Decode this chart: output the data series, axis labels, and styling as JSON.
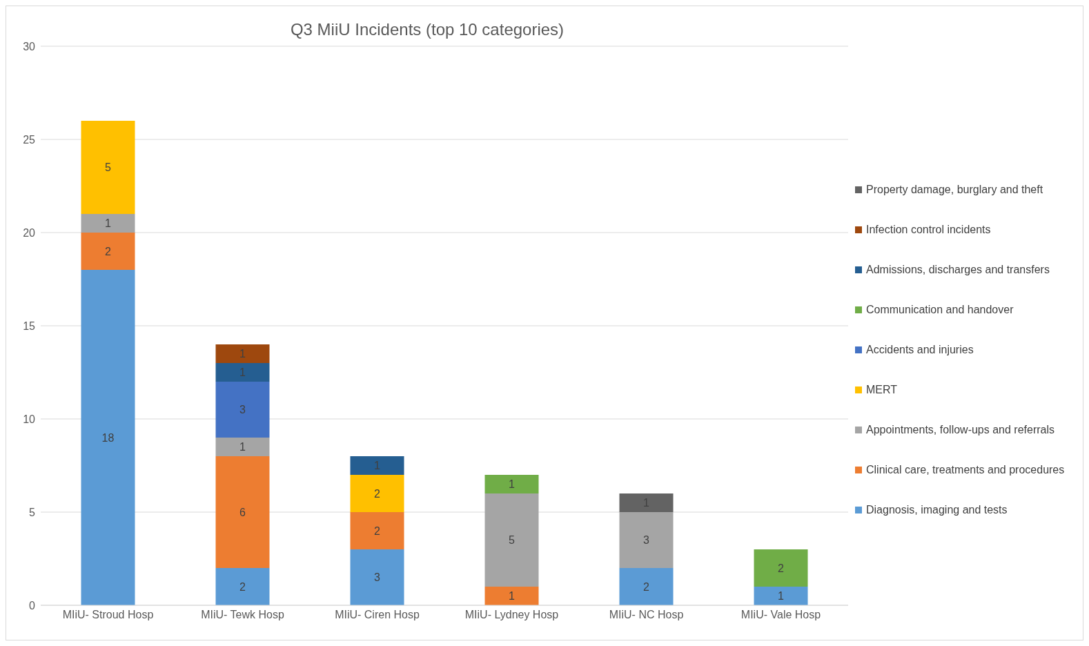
{
  "chart_data": {
    "type": "bar",
    "title": "Q3 MiiU Incidents (top 10 categories)",
    "stacked": true,
    "categories": [
      "MIiU- Stroud Hosp",
      "MIiU- Tewk Hosp",
      "MIiU- Ciren Hosp",
      "MIiU- Lydney Hosp",
      "MIiU- NC Hosp",
      "MIiU- Vale Hosp"
    ],
    "series": [
      {
        "name": "Diagnosis, imaging and tests",
        "color": "#5b9bd5",
        "values": [
          18,
          2,
          3,
          null,
          2,
          1
        ]
      },
      {
        "name": "Clinical care, treatments and procedures",
        "color": "#ed7d31",
        "values": [
          2,
          6,
          2,
          1,
          null,
          null
        ]
      },
      {
        "name": "Appointments, follow-ups and referrals",
        "color": "#a5a5a5",
        "values": [
          1,
          1,
          null,
          5,
          3,
          null
        ]
      },
      {
        "name": "MERT",
        "color": "#ffc000",
        "values": [
          5,
          null,
          2,
          null,
          null,
          null
        ]
      },
      {
        "name": "Accidents and injuries",
        "color": "#4472c4",
        "values": [
          null,
          3,
          null,
          null,
          null,
          null
        ]
      },
      {
        "name": "Communication and handover",
        "color": "#70ad47",
        "values": [
          null,
          null,
          null,
          1,
          null,
          2
        ]
      },
      {
        "name": "Admissions, discharges and transfers",
        "color": "#255e91",
        "values": [
          null,
          1,
          1,
          null,
          null,
          null
        ]
      },
      {
        "name": "Infection control incidents",
        "color": "#9e480e",
        "values": [
          null,
          1,
          null,
          null,
          null,
          null
        ]
      },
      {
        "name": "Property damage, burglary and theft",
        "color": "#636363",
        "values": [
          null,
          null,
          null,
          null,
          1,
          null
        ]
      }
    ],
    "ylim": [
      0,
      30
    ],
    "yticks": [
      0,
      5,
      10,
      15,
      20,
      25,
      30
    ],
    "grid": "y",
    "legend": "right",
    "data_labels": true
  }
}
